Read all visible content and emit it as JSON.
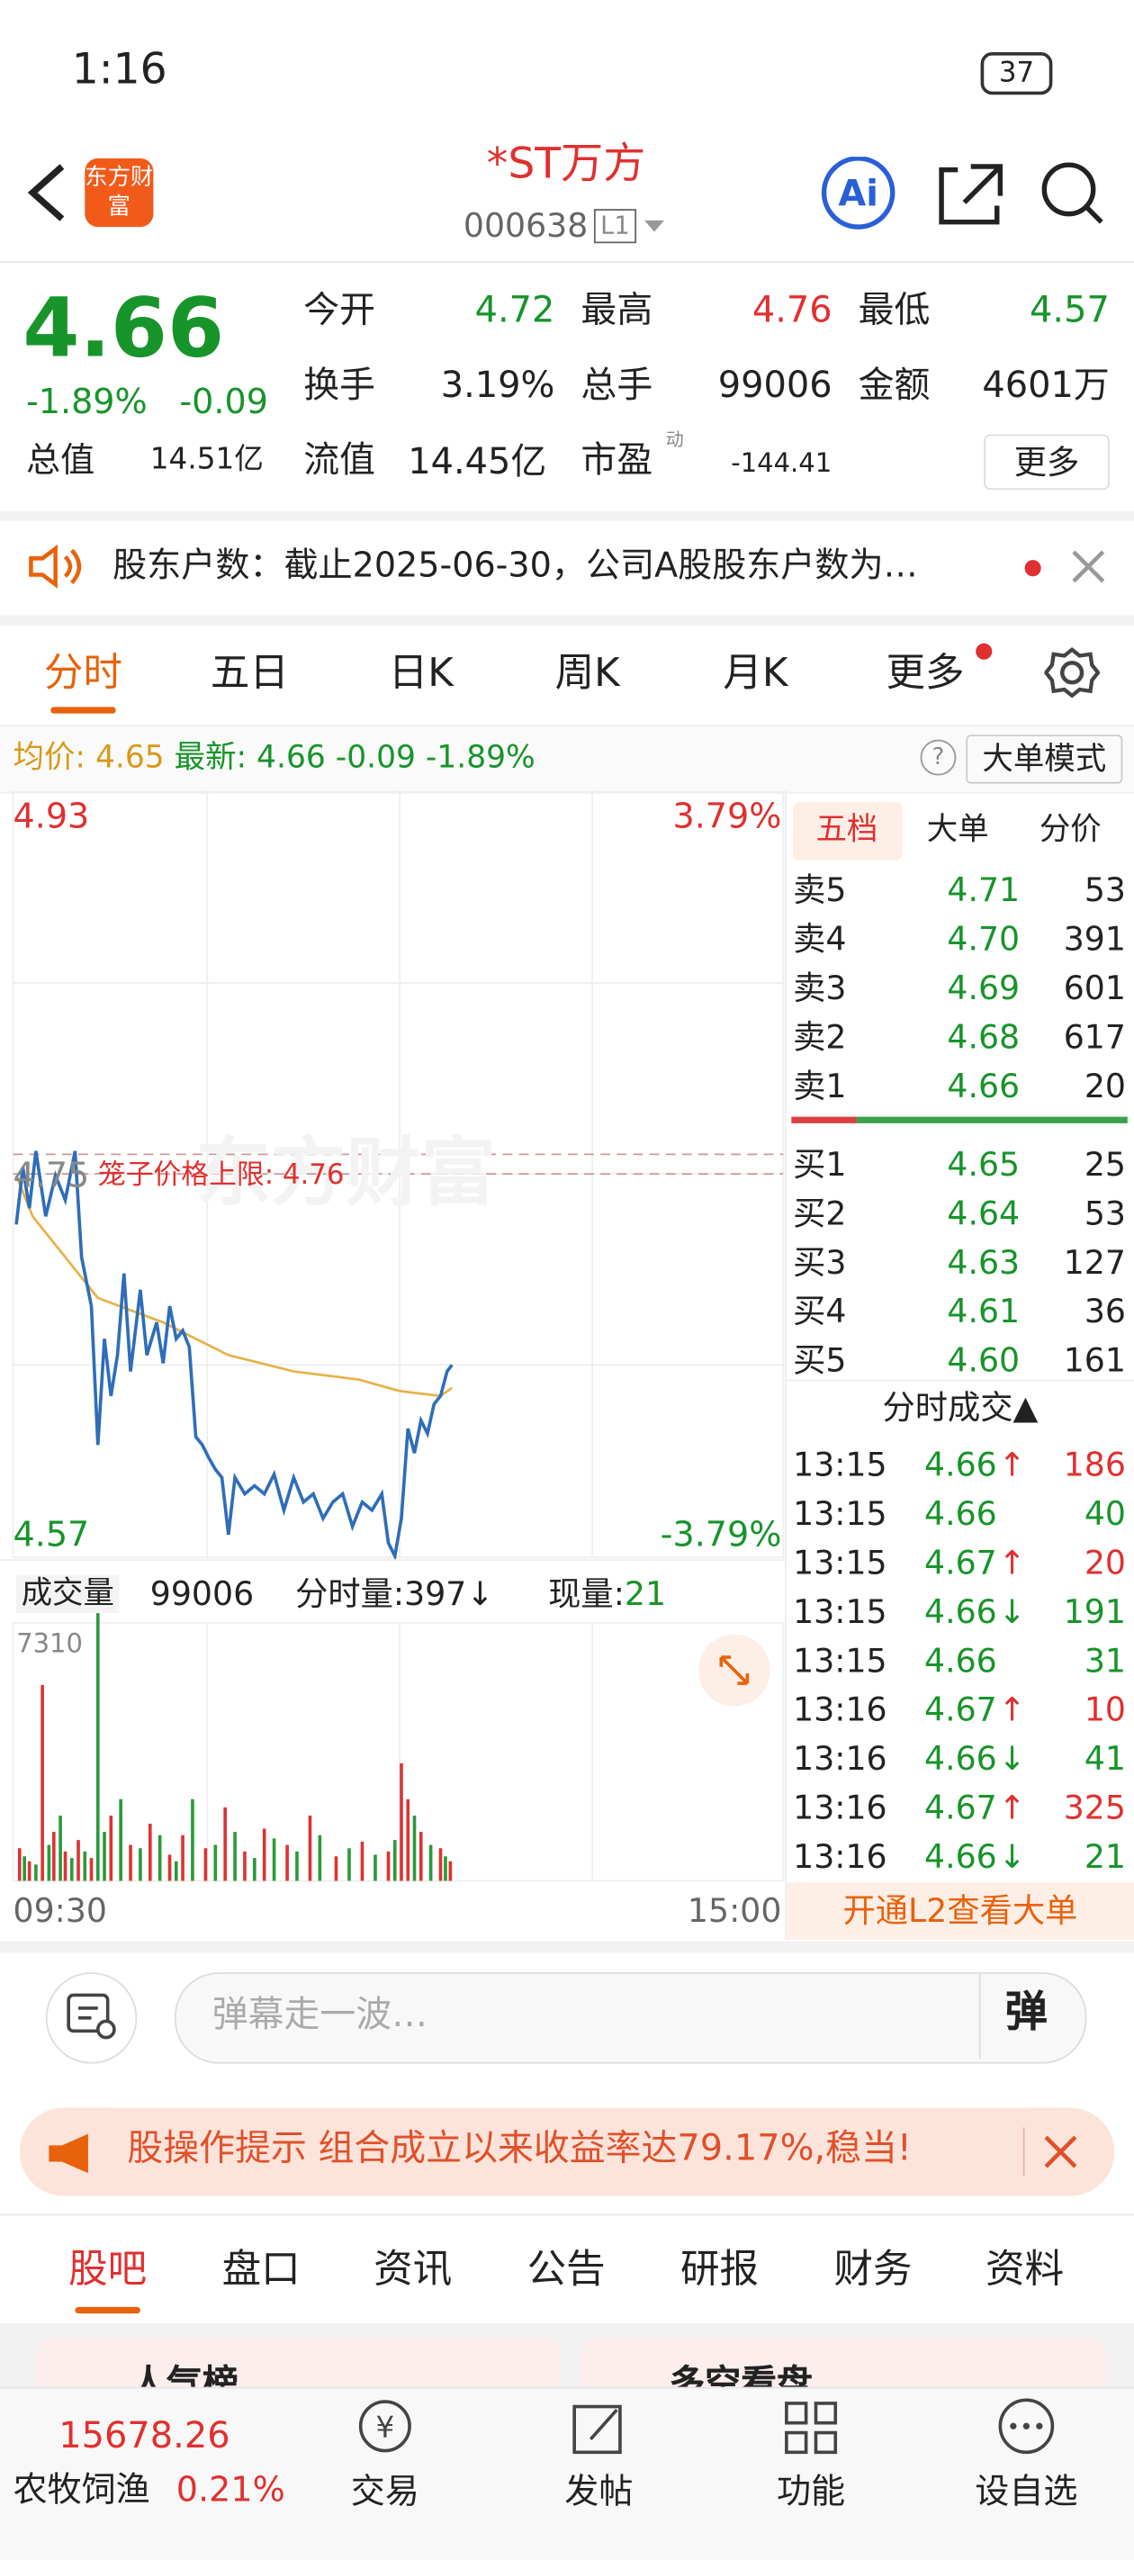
{
  "status_bar": {
    "time": "1:16",
    "battery": "37"
  },
  "header": {
    "logo": "东方财富",
    "title": "*ST万方",
    "code": "000638",
    "level": "L1"
  },
  "quote": {
    "price": "4.66",
    "change_pct": "-1.89%",
    "change": "-0.09",
    "fields": [
      {
        "label": "今开",
        "value": "4.72"
      },
      {
        "label": "最高",
        "value": "4.76"
      },
      {
        "label": "最低",
        "value": "4.57"
      },
      {
        "label": "换手",
        "value": "3.19%"
      },
      {
        "label": "总手",
        "value": "99006"
      },
      {
        "label": "金额",
        "value": "4601万"
      }
    ],
    "row3": [
      {
        "label": "总值",
        "value": "14.51亿"
      },
      {
        "label": "流值",
        "value": "14.45亿"
      },
      {
        "label": "市盈",
        "sup": "动",
        "value": "-144.41"
      }
    ],
    "more": "更多"
  },
  "notice": "股东户数：截止2025-06-30，公司A股股东户数为…",
  "tabs": [
    "分时",
    "五日",
    "日K",
    "周K",
    "月K",
    "更多"
  ],
  "info_bar": {
    "avg_label": "均价:",
    "avg": "4.65",
    "latest_label": "最新:",
    "latest": "4.66",
    "change": "-0.09",
    "change_pct": "-1.89%",
    "mode": "大单模式"
  },
  "chart": {
    "y_top": "4.93",
    "y_top_pct": "3.79%",
    "y_bottom": "4.57",
    "y_bottom_pct": "-3.79%",
    "mid": "4.75",
    "limit": "笼子价格上限: 4.76",
    "watermark": "东方财富",
    "x_start": "09:30",
    "x_end": "15:00",
    "volume_label": "成交量",
    "volume": "99006",
    "minute_label": "分时量:",
    "minute": "397↓",
    "current_label": "现量:",
    "current": "21",
    "volume_max": "7310"
  },
  "order_book": {
    "tabs": [
      "五档",
      "大单",
      "分价"
    ],
    "sell": [
      [
        "卖5",
        "4.71",
        "53"
      ],
      [
        "卖4",
        "4.70",
        "391"
      ],
      [
        "卖3",
        "4.69",
        "601"
      ],
      [
        "卖2",
        "4.68",
        "617"
      ],
      [
        "卖1",
        "4.66",
        "20"
      ]
    ],
    "buy": [
      [
        "买1",
        "4.65",
        "25"
      ],
      [
        "买2",
        "4.64",
        "53"
      ],
      [
        "买3",
        "4.63",
        "127"
      ],
      [
        "买4",
        "4.61",
        "36"
      ],
      [
        "买5",
        "4.60",
        "161"
      ]
    ],
    "trades_title": "分时成交▲",
    "trades": [
      [
        "13:15",
        "4.66",
        "↑",
        "186"
      ],
      [
        "13:15",
        "4.66",
        "",
        "40"
      ],
      [
        "13:15",
        "4.67",
        "↑",
        "20"
      ],
      [
        "13:15",
        "4.66",
        "↓",
        "191"
      ],
      [
        "13:15",
        "4.66",
        "",
        "31"
      ],
      [
        "13:16",
        "4.67",
        "↑",
        "10"
      ],
      [
        "13:16",
        "4.66",
        "↓",
        "41"
      ],
      [
        "13:16",
        "4.67",
        "↑",
        "325"
      ],
      [
        "13:16",
        "4.66",
        "↓",
        "21"
      ]
    ],
    "l2": "开通L2查看大单"
  },
  "comment": {
    "placeholder": "弹幕走一波…",
    "button": "弹"
  },
  "promo": "股操作提示 组合成立以来收益率达79.17%,稳当!",
  "sub_tabs": [
    "股吧",
    "盘口",
    "资讯",
    "公告",
    "研报",
    "财务",
    "资料"
  ],
  "cards": [
    "人气榜",
    "多空看盘"
  ],
  "bottom_nav": {
    "index_value": "15678.26",
    "index_name": "农牧饲渔",
    "index_pct": "0.21%",
    "items": [
      "交易",
      "发帖",
      "功能",
      "设自选"
    ]
  }
}
